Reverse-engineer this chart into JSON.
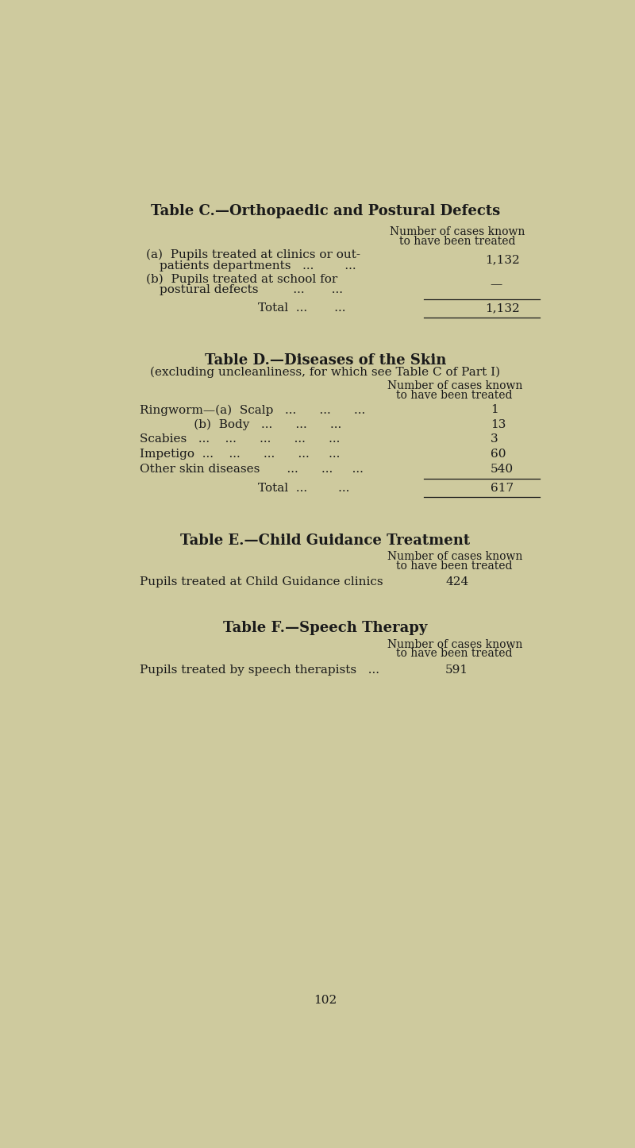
{
  "bg_color": "#ceca9e",
  "text_color": "#1a1a1a",
  "page_number": "102",
  "table_c": {
    "title": "Table C.—Orthopaedic and Postural Defects",
    "col_header_line1": "Number of cases known",
    "col_header_line2": "to have been treated",
    "row_a_line1": "(a)  Pupils treated at clinics or out-",
    "row_a_line2": "patients departments   ...        ...",
    "row_a_value": "1,132",
    "row_b_line1": "(b)  Pupils treated at school for",
    "row_b_line2": "postural defects         ...       ...",
    "row_b_value": "—",
    "total_label": "Total  ...       ...",
    "total_value": "1,132"
  },
  "table_d": {
    "title": "Table D.—Diseases of the Skin",
    "subtitle": "(excluding uncleanliness, for which see Table C of Part I)",
    "col_header_line1": "Number of cases known",
    "col_header_line2": "to have been treated",
    "row1_label": "Ringworm—(a)  Scalp   ...      ...      ...",
    "row1_value": "1",
    "row2_label": "              (b)  Body   ...      ...      ...",
    "row2_value": "13",
    "row3_label": "Scabies   ...    ...      ...      ...      ...",
    "row3_value": "3",
    "row4_label": "Impetigo  ...    ...      ...      ...     ...",
    "row4_value": "60",
    "row5_label": "Other skin diseases       ...      ...     ...",
    "row5_value": "540",
    "total_label": "Total  ...        ...",
    "total_value": "617"
  },
  "table_e": {
    "title": "Table E.—Child Guidance Treatment",
    "col_header_line1": "Number of cases known",
    "col_header_line2": "to have been treated",
    "row_label": "Pupils treated at Child Guidance clinics",
    "row_value": "424"
  },
  "table_f": {
    "title": "Table F.—Speech Therapy",
    "col_header_line1": "Number of cases known",
    "col_header_line2": "to have been treated",
    "row_label": "Pupils treated by speech therapists   ...",
    "row_value": "591"
  }
}
